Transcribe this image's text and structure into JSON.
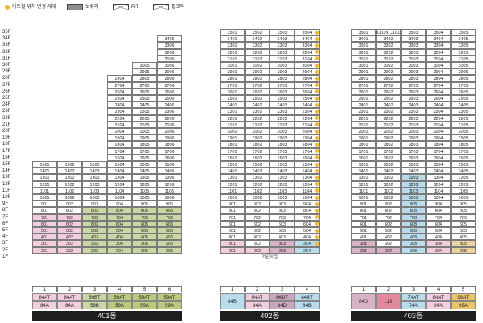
{
  "legend": {
    "changed_household": "아트월 위치 변경 세대",
    "reserved": "보류지",
    "pit": "PIT",
    "balcony_zone": "필로티"
  },
  "floors": [
    "35F",
    "34F",
    "33F",
    "32F",
    "31F",
    "30F",
    "29F",
    "28F",
    "27F",
    "26F",
    "25F",
    "24F",
    "23F",
    "22F",
    "21F",
    "20F",
    "19F",
    "18F",
    "17F",
    "16F",
    "15F",
    "14F",
    "13F",
    "12F",
    "11F",
    "10F",
    "9F",
    "8F",
    "7F",
    "6F",
    "5F",
    "4F",
    "3F",
    "2F",
    "1F"
  ],
  "buildings": [
    {
      "name": "401동",
      "lines": [
        "1",
        "2",
        "3",
        "4",
        "5",
        "6"
      ],
      "ground_floor_label": "",
      "types_top": [
        {
          "label": "84AT",
          "color": "#f2cddd"
        },
        {
          "label": "84AT",
          "color": "#f2cddd"
        },
        {
          "label": "59BT",
          "color": "#c9d7a5"
        },
        {
          "label": "59AT",
          "color": "#b9c97d"
        },
        {
          "label": "59AT",
          "color": "#b9c97d"
        },
        {
          "label": "59AT",
          "color": "#b9c97d"
        }
      ],
      "types_bottom": [
        {
          "label": "84A",
          "color": "#f2cddd"
        },
        {
          "label": "84A",
          "color": "#f2cddd"
        },
        {
          "label": "59B",
          "color": "#c9d7a5"
        },
        {
          "label": "59A",
          "color": "#b9c97d"
        },
        {
          "label": "59A",
          "color": "#b9c97d"
        },
        {
          "label": "59A",
          "color": "#b9c97d"
        }
      ]
    },
    {
      "name": "402동",
      "lines": [
        "1",
        "2",
        "3",
        "4"
      ],
      "ground_floor_label": "어린이집",
      "types_top": [
        {
          "label": "84B",
          "color": "#b8dcec"
        },
        {
          "label": "84AT",
          "color": "#f2cddd"
        },
        {
          "label": "84DT",
          "color": "#c9a7bc"
        },
        {
          "label": "84BT",
          "color": "#b8dcec"
        }
      ],
      "types_bottom": [
        {
          "label": "",
          "color": "#b8dcec"
        },
        {
          "label": "84A",
          "color": "#f2cddd"
        },
        {
          "label": "84D",
          "color": "#c9a7bc"
        },
        {
          "label": "84B",
          "color": "#b8dcec"
        }
      ]
    },
    {
      "name": "403동",
      "lines": [
        "1",
        "2",
        "3",
        "4",
        "5"
      ],
      "ground_floor_label": "",
      "types_top": [
        {
          "label": "84D",
          "color": "#d8b3c6"
        },
        {
          "label": "118",
          "color": "#e08a9e"
        },
        {
          "label": "74AT",
          "color": "#b8dcec"
        },
        {
          "label": "84AT",
          "color": "#f2cddd"
        },
        {
          "label": "99AT",
          "color": "#e9c46a"
        }
      ],
      "types_bottom": [
        {
          "label": "",
          "color": "#d8b3c6"
        },
        {
          "label": "",
          "color": "#e08a9e"
        },
        {
          "label": "74A",
          "color": "#b8dcec"
        },
        {
          "label": "84A",
          "color": "#f2cddd"
        },
        {
          "label": "99A",
          "color": "#e9c46a"
        }
      ]
    }
  ]
}
